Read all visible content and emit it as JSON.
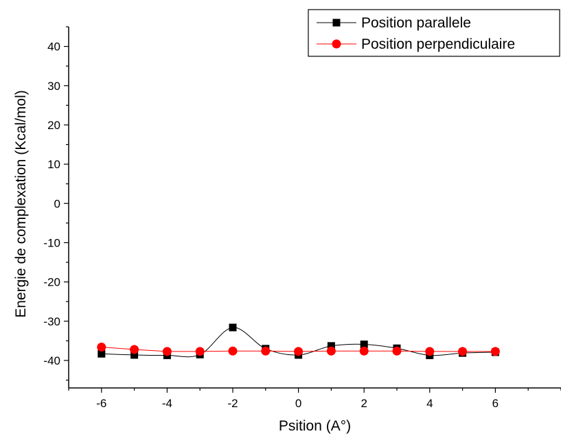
{
  "chart_data": {
    "type": "line",
    "xlabel": "Psition (A°)",
    "ylabel": "Energie de complexation (Kcal/mol)",
    "xlim": [
      -7,
      8
    ],
    "ylim": [
      -47,
      45
    ],
    "x_ticks": [
      -6,
      -4,
      -2,
      0,
      2,
      4,
      6
    ],
    "y_ticks": [
      -40,
      -30,
      -20,
      -10,
      0,
      10,
      20,
      30,
      40
    ],
    "grid": false,
    "legend_position": "top-right",
    "x": [
      -6,
      -5,
      -4,
      -3,
      -2,
      -1,
      0,
      1,
      2,
      3,
      4,
      5,
      6
    ],
    "series": [
      {
        "name": "Position parallele",
        "color": "#000000",
        "marker": "square",
        "smooth": true,
        "values": [
          -38.3,
          -38.6,
          -38.7,
          -38.5,
          -31.6,
          -37.0,
          -38.6,
          -36.3,
          -35.9,
          -36.9,
          -38.7,
          -38.1,
          -37.9
        ]
      },
      {
        "name": "Position perpendiculaire",
        "color": "#ff0000",
        "marker": "circle",
        "smooth": false,
        "values": [
          -36.6,
          -37.2,
          -37.7,
          -37.7,
          -37.6,
          -37.6,
          -37.7,
          -37.6,
          -37.6,
          -37.6,
          -37.7,
          -37.7,
          -37.7
        ]
      }
    ]
  }
}
